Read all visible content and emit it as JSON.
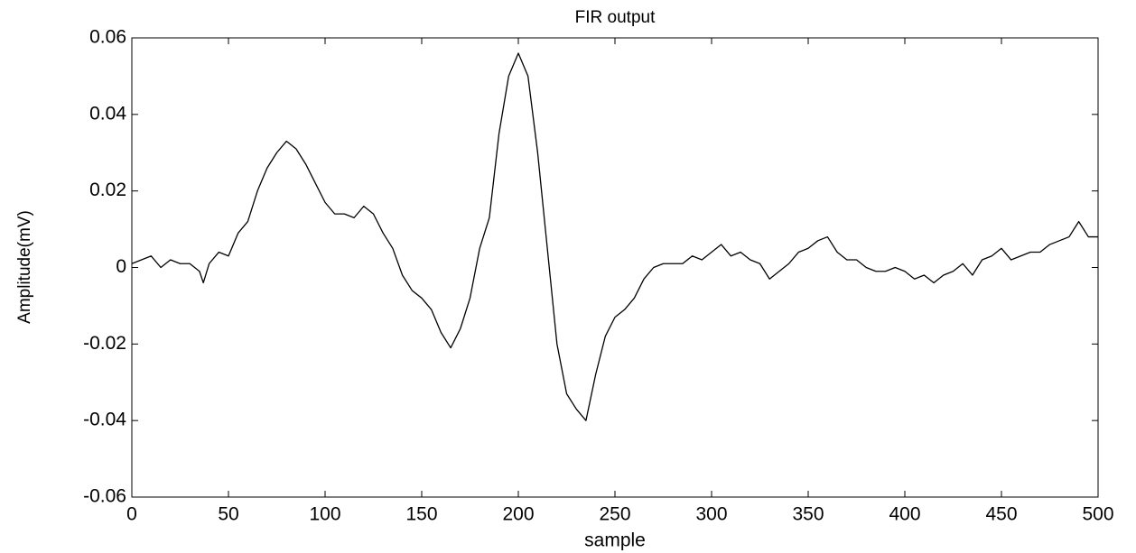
{
  "chart_data": {
    "type": "line",
    "title": "FIR output",
    "x_label": "sample",
    "y_label": "Amplitude(mV)",
    "x": [
      0,
      5,
      10,
      15,
      20,
      25,
      30,
      35,
      37,
      40,
      45,
      50,
      55,
      60,
      65,
      70,
      75,
      80,
      85,
      90,
      95,
      100,
      105,
      110,
      115,
      120,
      125,
      130,
      135,
      140,
      145,
      150,
      155,
      160,
      165,
      170,
      175,
      180,
      185,
      190,
      195,
      200,
      205,
      210,
      215,
      220,
      225,
      230,
      235,
      240,
      245,
      250,
      255,
      260,
      265,
      270,
      275,
      280,
      285,
      290,
      295,
      300,
      305,
      310,
      315,
      320,
      325,
      330,
      335,
      340,
      345,
      350,
      355,
      360,
      365,
      370,
      375,
      380,
      385,
      390,
      395,
      400,
      405,
      410,
      415,
      420,
      425,
      430,
      435,
      440,
      445,
      450,
      455,
      460,
      465,
      470,
      475,
      480,
      485,
      490,
      495,
      500
    ],
    "series": [
      {
        "name": "FIR output",
        "color": "#000000",
        "values": [
          0.001,
          0.002,
          0.003,
          0.0,
          0.002,
          0.001,
          0.001,
          -0.001,
          -0.004,
          0.001,
          0.004,
          0.003,
          0.009,
          0.012,
          0.02,
          0.026,
          0.03,
          0.033,
          0.031,
          0.027,
          0.022,
          0.017,
          0.014,
          0.014,
          0.013,
          0.016,
          0.014,
          0.009,
          0.005,
          -0.002,
          -0.006,
          -0.008,
          -0.011,
          -0.017,
          -0.021,
          -0.016,
          -0.008,
          0.005,
          0.013,
          0.035,
          0.05,
          0.056,
          0.05,
          0.03,
          0.005,
          -0.02,
          -0.033,
          -0.037,
          -0.04,
          -0.028,
          -0.018,
          -0.013,
          -0.011,
          -0.008,
          -0.003,
          0.0,
          0.001,
          0.001,
          0.001,
          0.003,
          0.002,
          0.004,
          0.006,
          0.003,
          0.004,
          0.002,
          0.001,
          -0.003,
          -0.001,
          0.001,
          0.004,
          0.005,
          0.007,
          0.008,
          0.004,
          0.002,
          0.002,
          0.0,
          -0.001,
          -0.001,
          0.0,
          -0.001,
          -0.003,
          -0.002,
          -0.004,
          -0.002,
          -0.001,
          0.001,
          -0.002,
          0.002,
          0.003,
          0.005,
          0.002,
          0.003,
          0.004,
          0.004,
          0.006,
          0.007,
          0.008,
          0.012,
          0.008,
          0.008
        ]
      }
    ],
    "xlim": [
      0,
      500
    ],
    "xticks": [
      0,
      50,
      100,
      150,
      200,
      250,
      300,
      350,
      400,
      450,
      500
    ],
    "ylim": [
      -0.06,
      0.06
    ],
    "yticks": [
      -0.06,
      -0.04,
      -0.02,
      0,
      0.02,
      0.04,
      0.06
    ]
  }
}
